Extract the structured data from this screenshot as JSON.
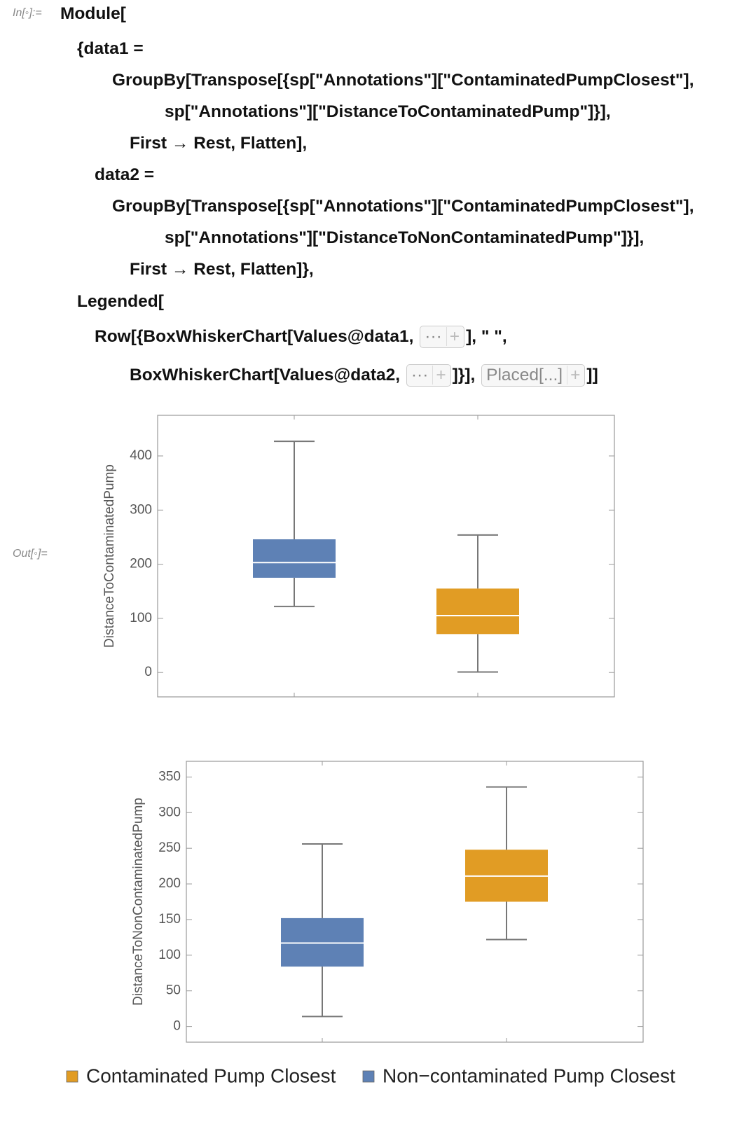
{
  "cell": {
    "in_label": "In[◦]:=",
    "out_label": "Out[◦]=",
    "code": [
      [
        "Module["
      ],
      [
        "{data1 ="
      ],
      [
        "GroupBy[Transpose[{sp[\"Annotations\"][\"ContaminatedPumpClosest\"],"
      ],
      [
        "sp[\"Annotations\"][\"DistanceToContaminatedPump\"]}],"
      ],
      [
        "First → Rest, Flatten],"
      ],
      [
        "data2 ="
      ],
      [
        "GroupBy[Transpose[{sp[\"Annotations\"][\"ContaminatedPumpClosest\"],"
      ],
      [
        "sp[\"Annotations\"][\"DistanceToNonContaminatedPump\"]}],"
      ],
      [
        "First → Rest, Flatten]},"
      ],
      [
        "Legended["
      ],
      [
        "Row[{BoxWhiskerChart[Values@data1, ",
        {
          "button": "···"
        },
        "], \"   \","
      ],
      [
        "BoxWhiskerChart[Values@data2, ",
        {
          "button": "···"
        },
        "]}], ",
        {
          "button": "Placed[...]"
        },
        "]]"
      ]
    ]
  },
  "chart_data": [
    {
      "type": "box",
      "y_label": "DistanceToContaminatedPump",
      "ylim": [
        -45,
        475
      ],
      "yticks": [
        0,
        100,
        200,
        300,
        400
      ],
      "boxes": [
        {
          "color": "#5e81b5",
          "values": [
            122,
            175,
            203,
            246,
            427
          ]
        },
        {
          "color": "#e19c24",
          "values": [
            1,
            71,
            105,
            155,
            254
          ]
        }
      ]
    },
    {
      "type": "box",
      "y_label": "DistanceToNonContaminatedPump",
      "ylim": [
        -22,
        372
      ],
      "yticks": [
        0,
        50,
        100,
        150,
        200,
        250,
        300,
        350
      ],
      "boxes": [
        {
          "color": "#5e81b5",
          "values": [
            14,
            84,
            117,
            152,
            256
          ]
        },
        {
          "color": "#e19c24",
          "values": [
            122,
            175,
            211,
            248,
            336
          ]
        }
      ]
    }
  ],
  "legend": [
    {
      "name": "Contaminated Pump Closest",
      "color": "#e19c24"
    },
    {
      "name": "Non−contaminated Pump Closest",
      "color": "#5e81b5"
    }
  ]
}
